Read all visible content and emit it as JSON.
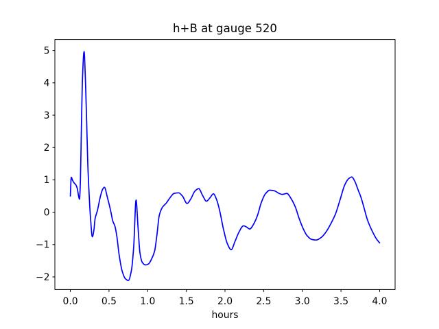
{
  "figure": {
    "background": "#ffffff"
  },
  "chart_data": {
    "type": "line",
    "title": "h+B at gauge 520",
    "xlabel": "hours",
    "ylabel": "",
    "line_color": "#0000ff",
    "axis_color": "#000000",
    "grid": false,
    "xlim": [
      -0.2,
      4.2
    ],
    "ylim": [
      -2.39,
      5.34
    ],
    "x_ticks": {
      "values": [
        0.0,
        0.5,
        1.0,
        1.5,
        2.0,
        2.5,
        3.0,
        3.5,
        4.0
      ],
      "labels": [
        "0.0",
        "0.5",
        "1.0",
        "1.5",
        "2.0",
        "2.5",
        "3.0",
        "3.5",
        "4.0"
      ]
    },
    "y_ticks": {
      "values": [
        -2,
        -1,
        0,
        1,
        2,
        3,
        4,
        5
      ],
      "labels": [
        "−2",
        "−1",
        "0",
        "1",
        "2",
        "3",
        "4",
        "5"
      ]
    },
    "series": [
      {
        "name": "h+B",
        "x": [
          0.0,
          0.012,
          0.03,
          0.05,
          0.07,
          0.09,
          0.105,
          0.118,
          0.13,
          0.143,
          0.158,
          0.178,
          0.195,
          0.21,
          0.225,
          0.24,
          0.26,
          0.285,
          0.305,
          0.32,
          0.35,
          0.39,
          0.42,
          0.44,
          0.48,
          0.52,
          0.55,
          0.575,
          0.6,
          0.63,
          0.67,
          0.71,
          0.75,
          0.79,
          0.82,
          0.85,
          0.875,
          0.9,
          0.93,
          0.97,
          1.01,
          1.05,
          1.09,
          1.12,
          1.15,
          1.19,
          1.24,
          1.29,
          1.34,
          1.4,
          1.45,
          1.51,
          1.56,
          1.61,
          1.66,
          1.71,
          1.76,
          1.81,
          1.85,
          1.89,
          1.93,
          1.98,
          2.03,
          2.08,
          2.13,
          2.18,
          2.24,
          2.28,
          2.32,
          2.37,
          2.42,
          2.47,
          2.52,
          2.58,
          2.64,
          2.7,
          2.74,
          2.8,
          2.86,
          2.91,
          2.96,
          3.01,
          3.06,
          3.12,
          3.18,
          3.25,
          3.31,
          3.37,
          3.43,
          3.49,
          3.55,
          3.6,
          3.64,
          3.68,
          3.72,
          3.76,
          3.8,
          3.84,
          3.88,
          3.92,
          3.96,
          4.0
        ],
        "y": [
          0.5,
          1.08,
          0.98,
          0.9,
          0.85,
          0.73,
          0.52,
          0.4,
          0.95,
          2.6,
          4.2,
          4.97,
          4.1,
          2.9,
          1.55,
          0.7,
          -0.15,
          -0.76,
          -0.55,
          -0.2,
          0.05,
          0.5,
          0.72,
          0.77,
          0.45,
          0.06,
          -0.28,
          -0.42,
          -0.72,
          -1.3,
          -1.82,
          -2.05,
          -2.11,
          -1.8,
          -1.05,
          0.38,
          -0.45,
          -1.25,
          -1.55,
          -1.63,
          -1.6,
          -1.45,
          -1.2,
          -0.7,
          -0.1,
          0.15,
          0.28,
          0.45,
          0.58,
          0.6,
          0.5,
          0.27,
          0.42,
          0.65,
          0.73,
          0.52,
          0.34,
          0.46,
          0.57,
          0.4,
          0.06,
          -0.52,
          -0.97,
          -1.16,
          -0.9,
          -0.62,
          -0.42,
          -0.46,
          -0.52,
          -0.37,
          -0.1,
          0.3,
          0.56,
          0.68,
          0.66,
          0.58,
          0.55,
          0.58,
          0.4,
          0.16,
          -0.2,
          -0.5,
          -0.72,
          -0.84,
          -0.86,
          -0.77,
          -0.6,
          -0.35,
          -0.05,
          0.4,
          0.85,
          1.04,
          1.09,
          0.95,
          0.7,
          0.45,
          0.12,
          -0.22,
          -0.46,
          -0.66,
          -0.83,
          -0.95
        ]
      }
    ]
  }
}
